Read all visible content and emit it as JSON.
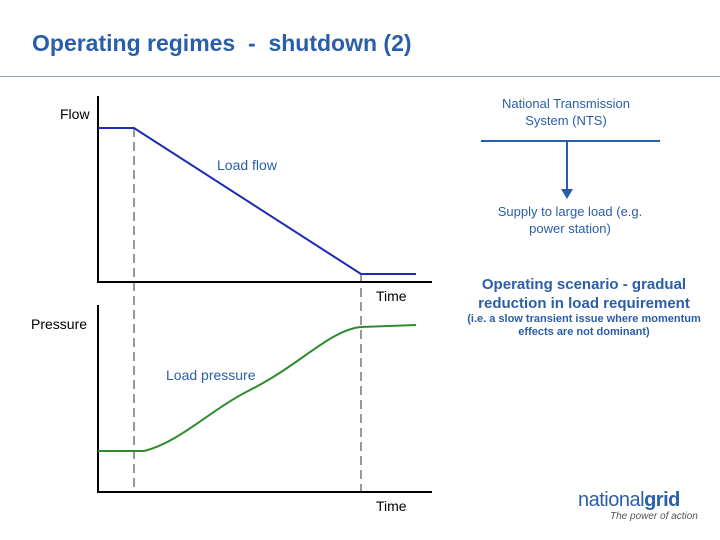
{
  "slide": {
    "title": "Operating regimes  -  shutdown (2)"
  },
  "flow_chart": {
    "y_label": "Flow",
    "x_label": "Time",
    "curve_label": "Load flow",
    "curve_color": "#1c2ab8"
  },
  "pressure_chart": {
    "y_label": "Pressure",
    "x_label": "Time",
    "curve_label": "Load pressure",
    "curve_color": "#2e8b2e"
  },
  "network": {
    "source_label": "National Transmission System (NTS)",
    "sink_label": "Supply to large load (e.g. power station)",
    "arrow_color": "#2a5ea8"
  },
  "scenario": {
    "title": "Operating scenario  -  gradual reduction in load requirement",
    "note": "(i.e. a slow transient issue where momentum effects are not dominant)"
  },
  "branding": {
    "logo_regular": "national",
    "logo_bold": "grid",
    "tagline": "The power of action"
  },
  "colors": {
    "title": "#2a5ea8",
    "accent_text": "#2a5ea8"
  }
}
